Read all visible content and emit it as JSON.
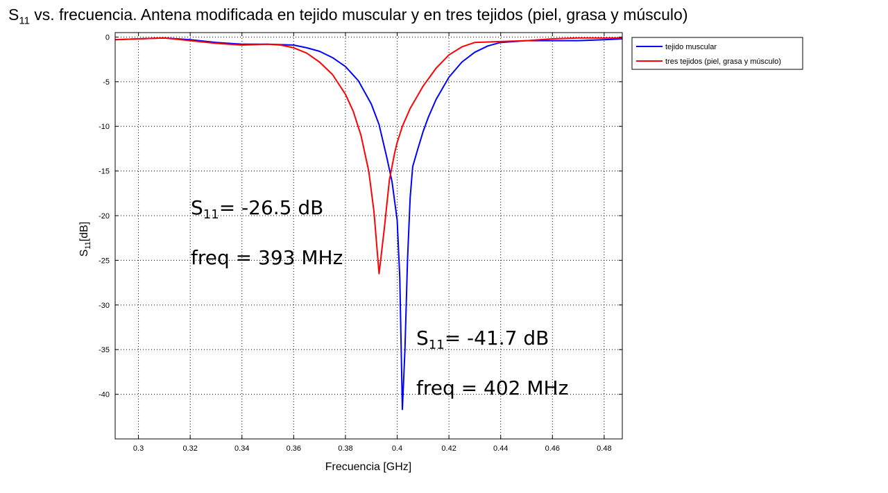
{
  "chart_data": {
    "type": "line",
    "title": {
      "prefix": "S",
      "sub": "11",
      "rest": " vs. frecuencia. Antena modificada en tejido muscular y en tres tejidos (piel, grasa y músculo)"
    },
    "xlabel": "Frecuencia [GHz]",
    "ylabel": {
      "prefix": "S",
      "sub": "11",
      "rest": "[dB]"
    },
    "xlim": [
      0.291,
      0.487
    ],
    "ylim": [
      -45,
      0.5
    ],
    "x_ticks": [
      0.3,
      0.32,
      0.34,
      0.36,
      0.38,
      0.4,
      0.42,
      0.44,
      0.46,
      0.48
    ],
    "x_tick_labels": [
      "0.3",
      "0.32",
      "0.34",
      "0.36",
      "0.38",
      "0.4",
      "0.42",
      "0.44",
      "0.46",
      "0.48"
    ],
    "y_ticks": [
      0,
      -5,
      -10,
      -15,
      -20,
      -25,
      -30,
      -35,
      -40
    ],
    "y_tick_labels": [
      "0",
      "-5",
      "-10",
      "-15",
      "-20",
      "-25",
      "-30",
      "-35",
      "-40"
    ],
    "grid": true,
    "legend_position": "outside-top-right",
    "series": [
      {
        "name": "tejido muscular",
        "color": "#0000ff",
        "x": [
          0.291,
          0.3,
          0.31,
          0.32,
          0.33,
          0.34,
          0.35,
          0.36,
          0.365,
          0.37,
          0.375,
          0.38,
          0.385,
          0.39,
          0.393,
          0.396,
          0.398,
          0.4,
          0.401,
          0.402,
          0.403,
          0.404,
          0.405,
          0.406,
          0.408,
          0.41,
          0.412,
          0.415,
          0.42,
          0.425,
          0.43,
          0.435,
          0.44,
          0.45,
          0.46,
          0.47,
          0.48,
          0.487
        ],
        "y": [
          -0.3,
          -0.2,
          -0.1,
          -0.3,
          -0.6,
          -0.8,
          -0.8,
          -0.9,
          -1.2,
          -1.6,
          -2.3,
          -3.3,
          -4.9,
          -7.5,
          -9.8,
          -13.5,
          -16.2,
          -20.5,
          -27,
          -41.7,
          -35,
          -25,
          -18,
          -14.5,
          -12.5,
          -10.6,
          -9.0,
          -7.0,
          -4.5,
          -2.8,
          -1.7,
          -1.0,
          -0.6,
          -0.4,
          -0.4,
          -0.4,
          -0.3,
          -0.2
        ]
      },
      {
        "name": "tres tejidos (piel, grasa y músculo)",
        "color": "#ff0000",
        "x": [
          0.291,
          0.3,
          0.31,
          0.32,
          0.33,
          0.34,
          0.35,
          0.355,
          0.36,
          0.365,
          0.37,
          0.375,
          0.38,
          0.383,
          0.386,
          0.389,
          0.391,
          0.393,
          0.395,
          0.397,
          0.399,
          0.4,
          0.402,
          0.405,
          0.41,
          0.415,
          0.42,
          0.425,
          0.43,
          0.44,
          0.45,
          0.46,
          0.47,
          0.48,
          0.487
        ],
        "y": [
          -0.3,
          -0.2,
          -0.1,
          -0.4,
          -0.7,
          -0.9,
          -0.8,
          -0.9,
          -1.2,
          -1.8,
          -2.8,
          -4.2,
          -6.4,
          -8.3,
          -11.0,
          -15.0,
          -19.5,
          -26.5,
          -21.5,
          -16.0,
          -13.0,
          -11.8,
          -10.0,
          -8.0,
          -5.5,
          -3.5,
          -2.0,
          -1.1,
          -0.6,
          -0.5,
          -0.4,
          -0.2,
          -0.1,
          -0.1,
          -0.1
        ]
      }
    ],
    "annotations": [
      {
        "prefix": "S",
        "sub": "11",
        "value": "= -26.5 dB",
        "freq": "freq = 393 MHz"
      },
      {
        "prefix": "S",
        "sub": "11",
        "value": "= -41.7 dB",
        "freq": "freq = 402 MHz"
      }
    ]
  }
}
